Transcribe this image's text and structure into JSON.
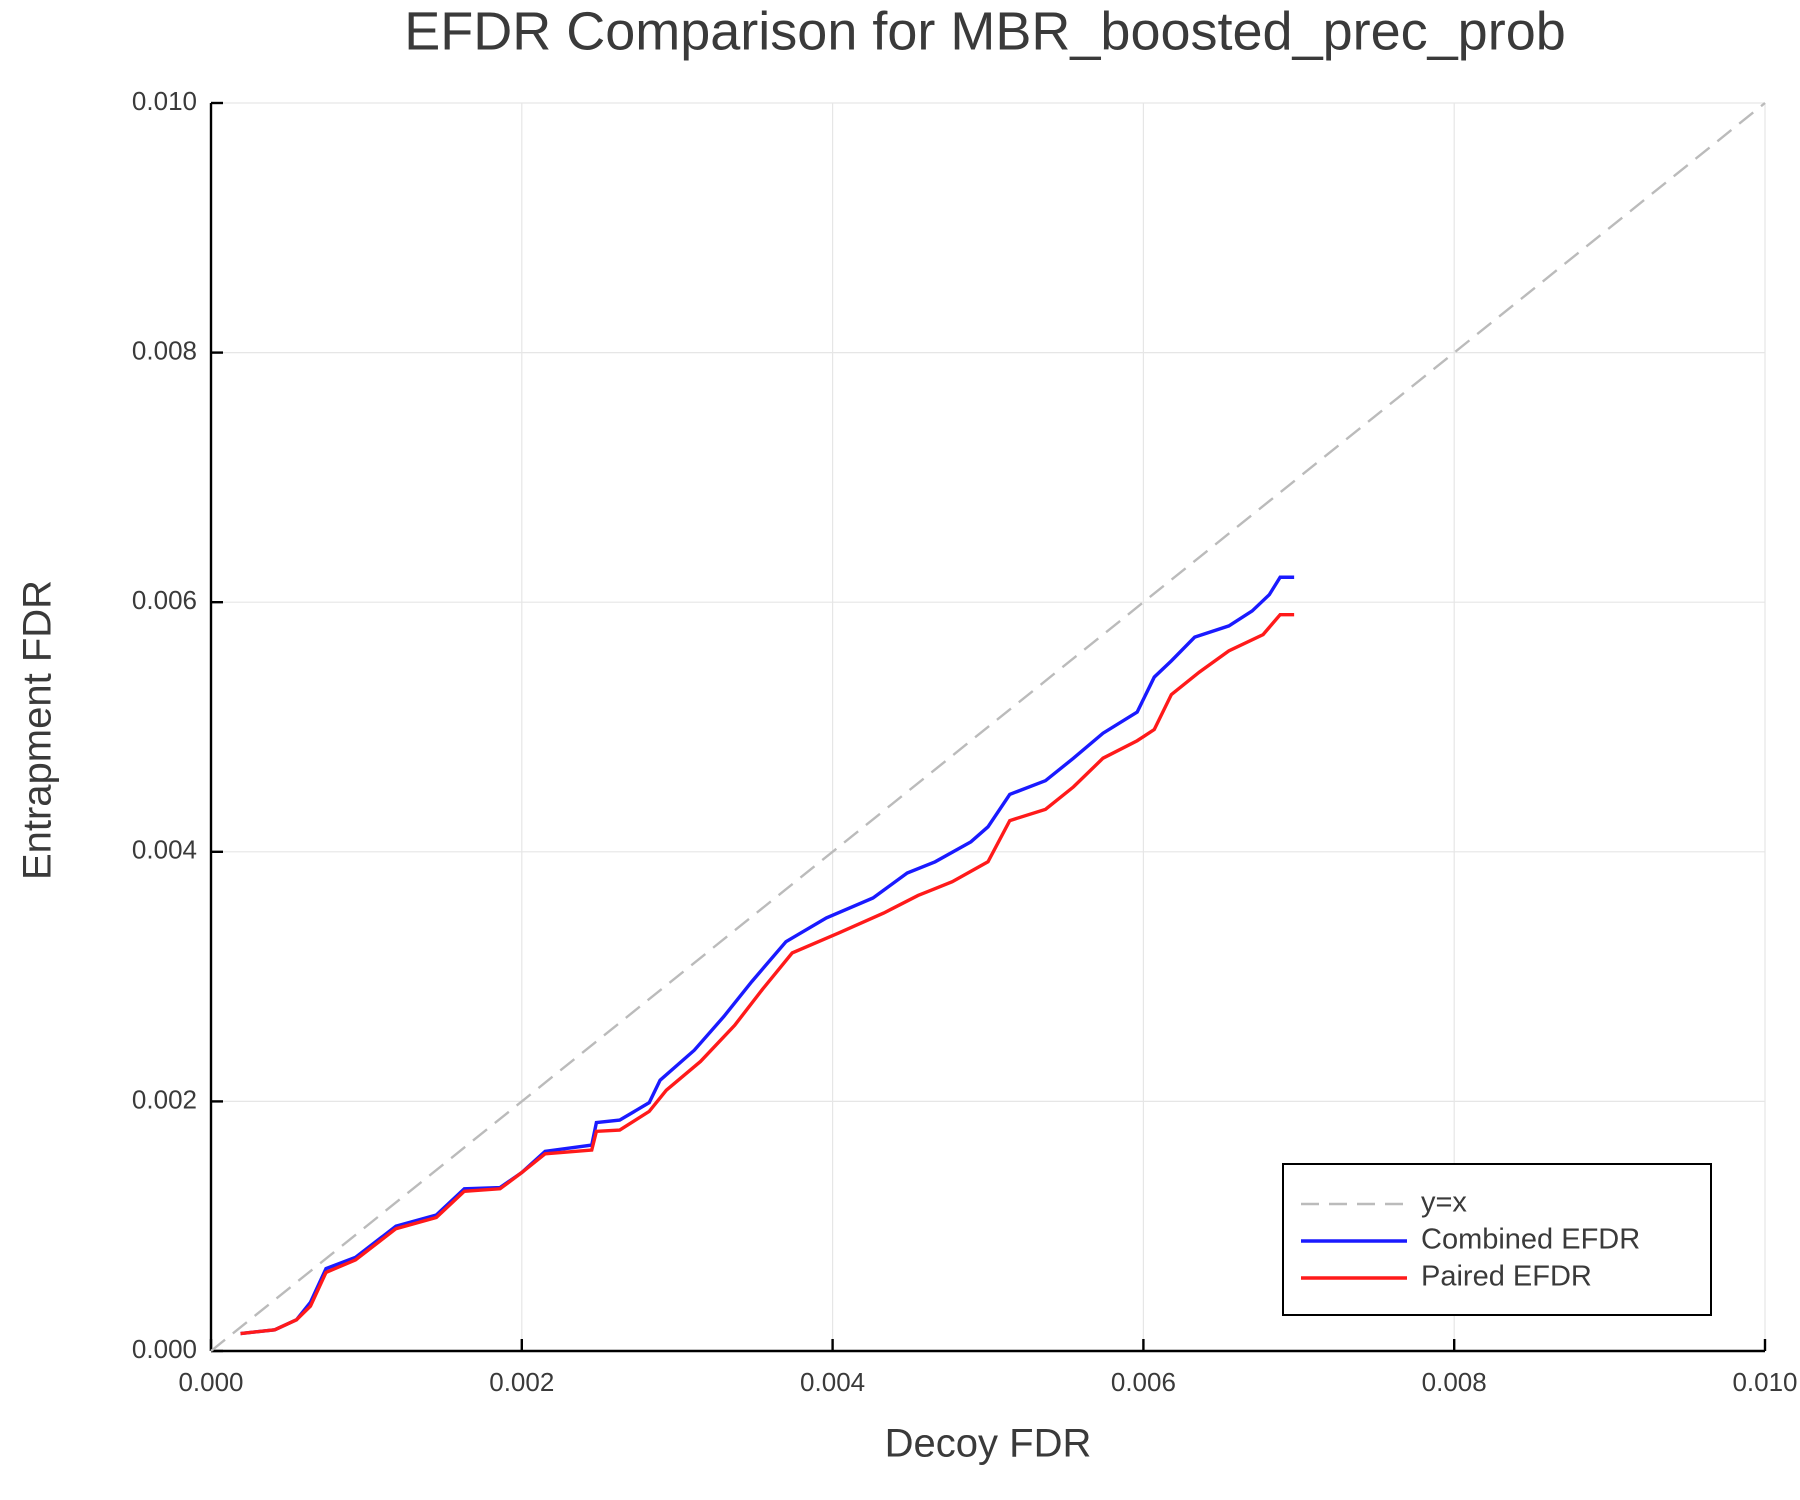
{
  "chart_data": {
    "type": "line",
    "title": "EFDR Comparison for MBR_boosted_prec_prob",
    "xlabel": "Decoy FDR",
    "ylabel": "Entrapment FDR",
    "xlim": [
      0,
      0.01
    ],
    "ylim": [
      0,
      0.01
    ],
    "xticks": [
      {
        "value": 0,
        "label": "0.000"
      },
      {
        "value": 0.002,
        "label": "0.002"
      },
      {
        "value": 0.004,
        "label": "0.004"
      },
      {
        "value": 0.006,
        "label": "0.006"
      },
      {
        "value": 0.008,
        "label": "0.008"
      },
      {
        "value": 0.01,
        "label": "0.010"
      }
    ],
    "yticks": [
      {
        "value": 0,
        "label": "0.000"
      },
      {
        "value": 0.002,
        "label": "0.002"
      },
      {
        "value": 0.004,
        "label": "0.004"
      },
      {
        "value": 0.006,
        "label": "0.006"
      },
      {
        "value": 0.008,
        "label": "0.008"
      },
      {
        "value": 0.01,
        "label": "0.010"
      }
    ],
    "grid": true,
    "legend": "lower right",
    "series": [
      {
        "name": "y=x",
        "color": "#bbbbbb",
        "linestyle": "dashed",
        "x": [
          0,
          0.01
        ],
        "values": [
          0,
          0.01
        ]
      },
      {
        "name": "Combined EFDR",
        "color": "#1a1aff",
        "linestyle": "solid",
        "x": [
          0.00019,
          0.00041,
          0.00055,
          0.00064,
          0.00074,
          0.00093,
          0.00119,
          0.00145,
          0.00163,
          0.00186,
          0.002,
          0.00215,
          0.00245,
          0.00248,
          0.00263,
          0.00282,
          0.00289,
          0.00311,
          0.0033,
          0.00348,
          0.0037,
          0.00396,
          0.00426,
          0.00448,
          0.00466,
          0.00489,
          0.005,
          0.00514,
          0.00537,
          0.00555,
          0.00574,
          0.00596,
          0.00607,
          0.00618,
          0.00633,
          0.00655,
          0.0067,
          0.00681,
          0.00688,
          0.00697
        ],
        "values": [
          0.00014,
          0.00017,
          0.00025,
          0.00039,
          0.00066,
          0.00075,
          0.001,
          0.00109,
          0.0013,
          0.00131,
          0.00143,
          0.0016,
          0.00165,
          0.00183,
          0.00185,
          0.00199,
          0.00217,
          0.00241,
          0.00268,
          0.00296,
          0.00328,
          0.00347,
          0.00363,
          0.00383,
          0.00392,
          0.00408,
          0.0042,
          0.00446,
          0.00457,
          0.00475,
          0.00495,
          0.00512,
          0.0054,
          0.00553,
          0.00572,
          0.00581,
          0.00593,
          0.00606,
          0.0062,
          0.0062
        ]
      },
      {
        "name": "Paired EFDR",
        "color": "#ff1a1a",
        "linestyle": "solid",
        "x": [
          0.00019,
          0.00041,
          0.00055,
          0.00064,
          0.00074,
          0.00093,
          0.00119,
          0.00145,
          0.00163,
          0.00186,
          0.002,
          0.00215,
          0.00245,
          0.00248,
          0.00263,
          0.00282,
          0.00293,
          0.00315,
          0.00337,
          0.00355,
          0.00374,
          0.00404,
          0.00433,
          0.00455,
          0.00477,
          0.005,
          0.00514,
          0.00537,
          0.00555,
          0.00574,
          0.00596,
          0.00607,
          0.00618,
          0.00636,
          0.00655,
          0.00677,
          0.00688,
          0.00697
        ],
        "values": [
          0.00014,
          0.00017,
          0.00025,
          0.00036,
          0.00063,
          0.00073,
          0.00098,
          0.00107,
          0.00128,
          0.0013,
          0.00143,
          0.00158,
          0.00161,
          0.00176,
          0.00177,
          0.00192,
          0.00209,
          0.00232,
          0.00261,
          0.0029,
          0.00319,
          0.00335,
          0.00351,
          0.00365,
          0.00376,
          0.00392,
          0.00425,
          0.00434,
          0.00452,
          0.00475,
          0.00489,
          0.00498,
          0.00526,
          0.00544,
          0.00561,
          0.00574,
          0.0059,
          0.0059
        ]
      }
    ]
  }
}
